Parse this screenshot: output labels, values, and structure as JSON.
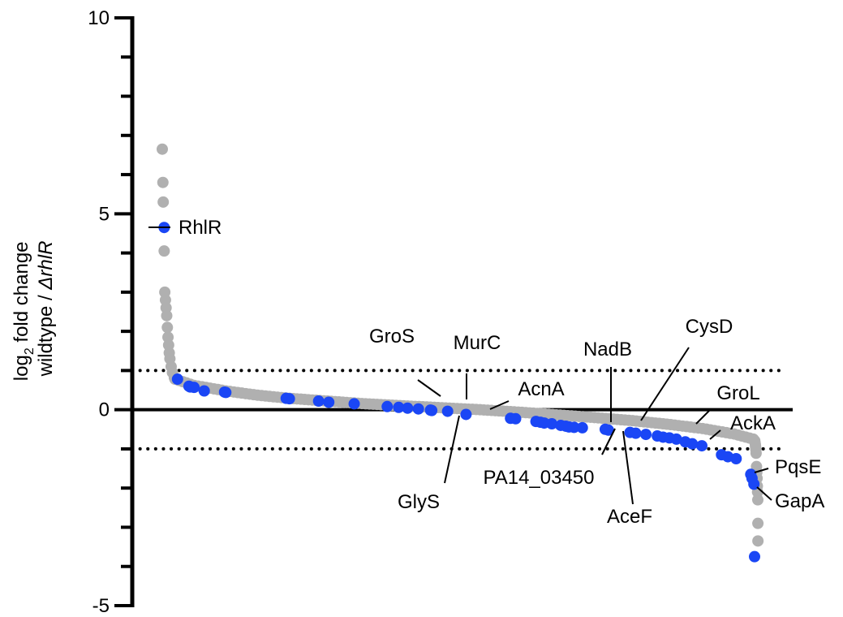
{
  "chart_data": {
    "type": "scatter",
    "ylabel_line1_pre": "log",
    "ylabel_line1_sub": "2",
    "ylabel_line1_post": " fold change",
    "ylabel_line2_pre": "wildtype / ",
    "ylabel_line2_italic": "ΔrhlR",
    "ylim": [
      -5,
      10
    ],
    "yticks": [
      10,
      5,
      0,
      -5
    ],
    "thresholds": [
      1,
      -1
    ],
    "colors": {
      "background": "#b0b0b0",
      "highlight": "#1a46f5"
    },
    "background_series": [
      {
        "rank": 0,
        "value": 6.65
      },
      {
        "rank": 1,
        "value": 5.8
      },
      {
        "rank": 1.5,
        "value": 5.3
      },
      {
        "rank": 3,
        "value": 4.05
      },
      {
        "rank": 4,
        "value": 3.0
      },
      {
        "rank": 5,
        "value": 2.8
      },
      {
        "rank": 6,
        "value": 2.6
      },
      {
        "rank": 7,
        "value": 2.4
      },
      {
        "rank": 8,
        "value": 2.1
      },
      {
        "rank": 9,
        "value": 1.85
      },
      {
        "rank": 10,
        "value": 1.65
      },
      {
        "rank": 11,
        "value": 1.45
      },
      {
        "rank": 12,
        "value": 1.3
      },
      {
        "rank": 14,
        "value": 1.1
      },
      {
        "rank": 16,
        "value": 0.95
      },
      {
        "rank": 19,
        "value": 0.82
      },
      {
        "rank": 980,
        "value": -1.45
      },
      {
        "rank": 987,
        "value": -1.6
      },
      {
        "rank": 994,
        "value": -1.75
      },
      {
        "rank": 1001,
        "value": -1.95
      },
      {
        "rank": 1006,
        "value": -2.1
      },
      {
        "rank": 1012,
        "value": -2.3
      },
      {
        "rank": 1014,
        "value": -2.9
      },
      {
        "rank": 1015,
        "value": -3.35
      }
    ],
    "background_curve": [
      {
        "rank": 20,
        "value": 0.78
      },
      {
        "rank": 50,
        "value": 0.62
      },
      {
        "rank": 100,
        "value": 0.48
      },
      {
        "rank": 150,
        "value": 0.37
      },
      {
        "rank": 200,
        "value": 0.29
      },
      {
        "rank": 260,
        "value": 0.22
      },
      {
        "rank": 320,
        "value": 0.15
      },
      {
        "rank": 380,
        "value": 0.1
      },
      {
        "rank": 440,
        "value": 0.05
      },
      {
        "rank": 500,
        "value": 0.0
      },
      {
        "rank": 560,
        "value": -0.06
      },
      {
        "rank": 620,
        "value": -0.13
      },
      {
        "rank": 680,
        "value": -0.2
      },
      {
        "rank": 740,
        "value": -0.28
      },
      {
        "rank": 800,
        "value": -0.38
      },
      {
        "rank": 850,
        "value": -0.48
      },
      {
        "rank": 900,
        "value": -0.62
      },
      {
        "rank": 930,
        "value": -0.75
      },
      {
        "rank": 950,
        "value": -0.88
      },
      {
        "rank": 965,
        "value": -1.02
      },
      {
        "rank": 975,
        "value": -1.2
      }
    ],
    "highlight_series": [
      {
        "rank": 3,
        "value": 4.65
      },
      {
        "rank": 24,
        "value": 0.78
      },
      {
        "rank": 42,
        "value": 0.6
      },
      {
        "rank": 44,
        "value": 0.58
      },
      {
        "rank": 50,
        "value": 0.57
      },
      {
        "rank": 66,
        "value": 0.48
      },
      {
        "rank": 98,
        "value": 0.45
      },
      {
        "rank": 100,
        "value": 0.44
      },
      {
        "rank": 195,
        "value": 0.29
      },
      {
        "rank": 200,
        "value": 0.28
      },
      {
        "rank": 246,
        "value": 0.22
      },
      {
        "rank": 262,
        "value": 0.19
      },
      {
        "rank": 302,
        "value": 0.15
      },
      {
        "rank": 354,
        "value": 0.08
      },
      {
        "rank": 372,
        "value": 0.06
      },
      {
        "rank": 386,
        "value": 0.04
      },
      {
        "rank": 403,
        "value": 0.02
      },
      {
        "rank": 422,
        "value": -0.01
      },
      {
        "rank": 424,
        "value": -0.02
      },
      {
        "rank": 449,
        "value": -0.04
      },
      {
        "rank": 478,
        "value": -0.12
      },
      {
        "rank": 548,
        "value": -0.22
      },
      {
        "rank": 556,
        "value": -0.23
      },
      {
        "rank": 588,
        "value": -0.3
      },
      {
        "rank": 595,
        "value": -0.32
      },
      {
        "rank": 601,
        "value": -0.34
      },
      {
        "rank": 613,
        "value": -0.36
      },
      {
        "rank": 627,
        "value": -0.4
      },
      {
        "rank": 635,
        "value": -0.42
      },
      {
        "rank": 640,
        "value": -0.44
      },
      {
        "rank": 648,
        "value": -0.45
      },
      {
        "rank": 661,
        "value": -0.46
      },
      {
        "rank": 697,
        "value": -0.5
      },
      {
        "rank": 702,
        "value": -0.52
      },
      {
        "rank": 736,
        "value": -0.58
      },
      {
        "rank": 745,
        "value": -0.6
      },
      {
        "rank": 761,
        "value": -0.63
      },
      {
        "rank": 779,
        "value": -0.67
      },
      {
        "rank": 788,
        "value": -0.7
      },
      {
        "rank": 798,
        "value": -0.72
      },
      {
        "rank": 809,
        "value": -0.75
      },
      {
        "rank": 823,
        "value": -0.82
      },
      {
        "rank": 834,
        "value": -0.87
      },
      {
        "rank": 849,
        "value": -0.92
      },
      {
        "rank": 880,
        "value": -1.15
      },
      {
        "rank": 890,
        "value": -1.2
      },
      {
        "rank": 903,
        "value": -1.25
      },
      {
        "rank": 926,
        "value": -1.65
      },
      {
        "rank": 928,
        "value": -1.75
      },
      {
        "rank": 931,
        "value": -1.9
      },
      {
        "rank": 932,
        "value": -3.75
      }
    ],
    "annotations": [
      {
        "label": "RhlR",
        "point": {
          "rank": 3,
          "value": 4.65
        }
      },
      {
        "label": "GroS",
        "point": {
          "rank": 422,
          "value": 0.35
        }
      },
      {
        "label": "MurC",
        "point": {
          "rank": 453,
          "value": 0.03
        }
      },
      {
        "label": "AcnA",
        "point": {
          "rank": 497,
          "value": 0.0
        }
      },
      {
        "label": "GlyS",
        "point": {
          "rank": 472,
          "value": -0.03
        }
      },
      {
        "label": "NadB",
        "point": {
          "rank": 718,
          "value": -0.29
        }
      },
      {
        "label": "CysD",
        "point": {
          "rank": 752,
          "value": -0.52
        }
      },
      {
        "label": "PA14_03450",
        "point": {
          "rank": 710,
          "value": -0.67
        }
      },
      {
        "label": "AceF",
        "point": {
          "rank": 732,
          "value": -0.69
        }
      },
      {
        "label": "GroL",
        "point": {
          "rank": 842,
          "value": -0.41
        }
      },
      {
        "label": "AckA",
        "point": {
          "rank": 865,
          "value": -0.77
        }
      },
      {
        "label": "PqsE",
        "point": {
          "rank": 925,
          "value": -1.57
        }
      },
      {
        "label": "GapA",
        "point": {
          "rank": 928,
          "value": -1.79
        }
      }
    ]
  }
}
